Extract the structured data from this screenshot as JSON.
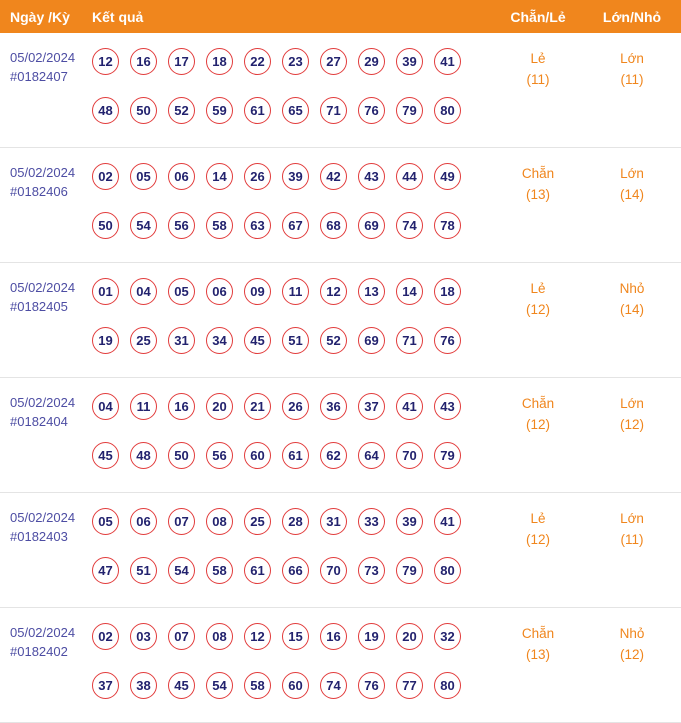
{
  "header": {
    "date_period": "Ngày /Kỳ",
    "result": "Kết quả",
    "even_odd": "Chẵn/Lẻ",
    "big_small": "Lớn/Nhỏ"
  },
  "colors": {
    "header_bg": "#f0861d",
    "header_text": "#ffffff",
    "date_text": "#4d4da3",
    "ball_border": "#e23c3c",
    "ball_text": "#22226e",
    "stat_text": "#f0861d",
    "divider": "#e4e4e4",
    "page_bg": "#ffffff"
  },
  "rows": [
    {
      "date": "05/02/2024",
      "period": "#0182407",
      "numbers_row1": [
        "12",
        "16",
        "17",
        "18",
        "22",
        "23",
        "27",
        "29",
        "39",
        "41"
      ],
      "numbers_row2": [
        "48",
        "50",
        "52",
        "59",
        "61",
        "65",
        "71",
        "76",
        "79",
        "80"
      ],
      "even_odd_value": "Lẻ",
      "even_odd_count": "(11)",
      "big_small_value": "Lớn",
      "big_small_count": "(11)"
    },
    {
      "date": "05/02/2024",
      "period": "#0182406",
      "numbers_row1": [
        "02",
        "05",
        "06",
        "14",
        "26",
        "39",
        "42",
        "43",
        "44",
        "49"
      ],
      "numbers_row2": [
        "50",
        "54",
        "56",
        "58",
        "63",
        "67",
        "68",
        "69",
        "74",
        "78"
      ],
      "even_odd_value": "Chẵn",
      "even_odd_count": "(13)",
      "big_small_value": "Lớn",
      "big_small_count": "(14)"
    },
    {
      "date": "05/02/2024",
      "period": "#0182405",
      "numbers_row1": [
        "01",
        "04",
        "05",
        "06",
        "09",
        "11",
        "12",
        "13",
        "14",
        "18"
      ],
      "numbers_row2": [
        "19",
        "25",
        "31",
        "34",
        "45",
        "51",
        "52",
        "69",
        "71",
        "76"
      ],
      "even_odd_value": "Lẻ",
      "even_odd_count": "(12)",
      "big_small_value": "Nhỏ",
      "big_small_count": "(14)"
    },
    {
      "date": "05/02/2024",
      "period": "#0182404",
      "numbers_row1": [
        "04",
        "11",
        "16",
        "20",
        "21",
        "26",
        "36",
        "37",
        "41",
        "43"
      ],
      "numbers_row2": [
        "45",
        "48",
        "50",
        "56",
        "60",
        "61",
        "62",
        "64",
        "70",
        "79"
      ],
      "even_odd_value": "Chẵn",
      "even_odd_count": "(12)",
      "big_small_value": "Lớn",
      "big_small_count": "(12)"
    },
    {
      "date": "05/02/2024",
      "period": "#0182403",
      "numbers_row1": [
        "05",
        "06",
        "07",
        "08",
        "25",
        "28",
        "31",
        "33",
        "39",
        "41"
      ],
      "numbers_row2": [
        "47",
        "51",
        "54",
        "58",
        "61",
        "66",
        "70",
        "73",
        "79",
        "80"
      ],
      "even_odd_value": "Lẻ",
      "even_odd_count": "(12)",
      "big_small_value": "Lớn",
      "big_small_count": "(11)"
    },
    {
      "date": "05/02/2024",
      "period": "#0182402",
      "numbers_row1": [
        "02",
        "03",
        "07",
        "08",
        "12",
        "15",
        "16",
        "19",
        "20",
        "32"
      ],
      "numbers_row2": [
        "37",
        "38",
        "45",
        "54",
        "58",
        "60",
        "74",
        "76",
        "77",
        "80"
      ],
      "even_odd_value": "Chẵn",
      "even_odd_count": "(13)",
      "big_small_value": "Nhỏ",
      "big_small_count": "(12)"
    }
  ]
}
